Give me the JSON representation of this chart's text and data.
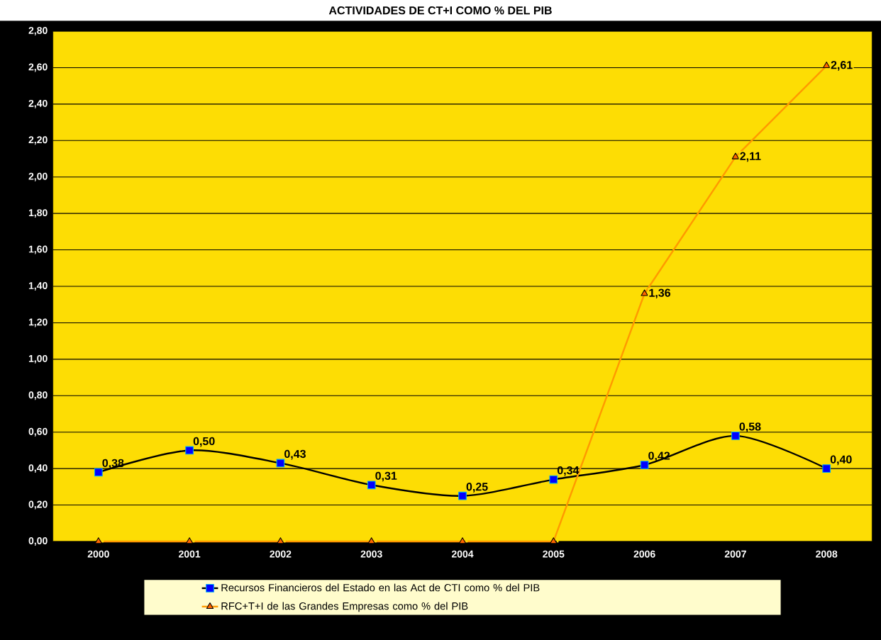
{
  "chart_data": {
    "type": "line",
    "title": "ACTIVIDADES DE CT+I COMO % DEL PIB",
    "categories": [
      "2000",
      "2001",
      "2002",
      "2003",
      "2004",
      "2005",
      "2006",
      "2007",
      "2008"
    ],
    "series": [
      {
        "name": "Recursos Financieros del Estado  en las Act de CTI  como % del PIB",
        "color": "#000000",
        "marker": "square",
        "values": [
          0.38,
          0.5,
          0.43,
          0.31,
          0.25,
          0.34,
          0.42,
          0.58,
          0.4
        ],
        "value_labels": [
          "0,38",
          "0,50",
          "0,43",
          "0,31",
          "0,25",
          "0,34",
          "0,42",
          "0,58",
          "0,40"
        ]
      },
      {
        "name": "RFC+T+I de las Grandes Empresas  como % del PIB",
        "color": "#ff9900",
        "marker": "triangle",
        "values": [
          0,
          0,
          0,
          0,
          0,
          0,
          1.36,
          2.11,
          2.61
        ],
        "value_labels": [
          null,
          null,
          null,
          null,
          null,
          null,
          "1,36",
          "2,11",
          "2,61"
        ]
      }
    ],
    "ylim": [
      0,
      2.8
    ],
    "yticks": [
      {
        "value": 0,
        "label": "0,00"
      },
      {
        "value": 0.2,
        "label": "0,20"
      },
      {
        "value": 0.4,
        "label": "0,40"
      },
      {
        "value": 0.6,
        "label": "0,60"
      },
      {
        "value": 0.8,
        "label": "0,80"
      },
      {
        "value": 1.0,
        "label": "1,00"
      },
      {
        "value": 1.2,
        "label": "1,20"
      },
      {
        "value": 1.4,
        "label": "1,40"
      },
      {
        "value": 1.6,
        "label": "1,60"
      },
      {
        "value": 1.8,
        "label": "1,80"
      },
      {
        "value": 2.0,
        "label": "2,00"
      },
      {
        "value": 2.2,
        "label": "2,20"
      },
      {
        "value": 2.4,
        "label": "2,40"
      },
      {
        "value": 2.6,
        "label": "2,60"
      },
      {
        "value": 2.8,
        "label": "2,80"
      }
    ],
    "grid": "y",
    "legend": "bottom"
  }
}
